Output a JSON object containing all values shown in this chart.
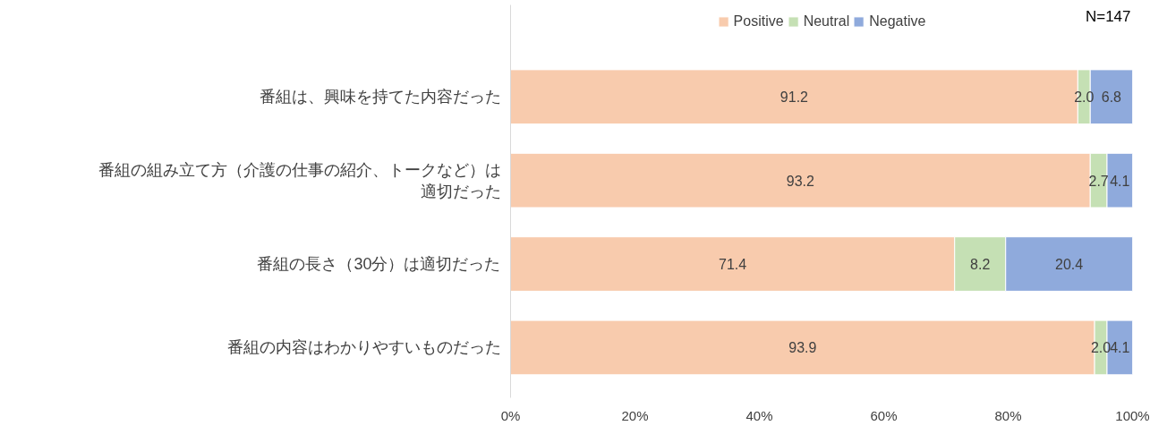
{
  "chart_data": {
    "type": "bar",
    "orientation": "horizontal",
    "stacked": true,
    "categories": [
      "番組は、興味を持てた内容だった",
      "番組の組み立て方（介護の仕事の紹介、トークなど）は適切だった",
      "番組の長さ（30分）は適切だった",
      "番組の内容はわかりやすいものだった"
    ],
    "series": [
      {
        "name": "Positive",
        "color": "#f8cbad",
        "values": [
          91.2,
          93.2,
          71.4,
          93.9
        ],
        "value_labels": [
          "91.2",
          "93.2",
          "71.4",
          "93.9"
        ]
      },
      {
        "name": "Neutral",
        "color": "#c5e0b4",
        "values": [
          2.0,
          2.7,
          8.2,
          2.0
        ],
        "value_labels": [
          "2.0",
          "2.7",
          "8.2",
          "2.0"
        ]
      },
      {
        "name": "Negative",
        "color": "#8faadc",
        "values": [
          6.8,
          4.1,
          20.4,
          4.1
        ],
        "value_labels": [
          "6.8",
          "4.1",
          "20.4",
          "4.1"
        ]
      }
    ],
    "xlim": [
      0,
      100
    ],
    "xticks": [
      {
        "value": 0,
        "label": "0%"
      },
      {
        "value": 20,
        "label": "20%"
      },
      {
        "value": 40,
        "label": "40%"
      },
      {
        "value": 60,
        "label": "60%"
      },
      {
        "value": 80,
        "label": "80%"
      },
      {
        "value": 100,
        "label": "100%"
      }
    ],
    "legend": "top",
    "grid": false,
    "annotations": [
      "N=147"
    ]
  }
}
